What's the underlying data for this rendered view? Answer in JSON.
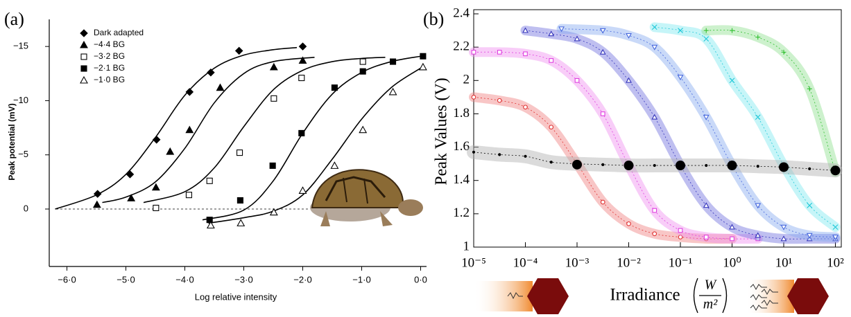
{
  "chart_data": [
    {
      "type": "scatter",
      "panel_label": "(a)",
      "y_label": "Peak potential (mV)",
      "x_label": "Log relative intensity",
      "xlim": [
        -6.3,
        0.1
      ],
      "ylim": [
        5.3,
        -17.5
      ],
      "xticks": [
        {
          "value": -6,
          "label": "−6·0"
        },
        {
          "value": -5,
          "label": "−5·0"
        },
        {
          "value": -4,
          "label": "−4·0"
        },
        {
          "value": -3,
          "label": "−3·0"
        },
        {
          "value": -2,
          "label": "−2·0"
        },
        {
          "value": -1,
          "label": "−1·0"
        },
        {
          "value": 0,
          "label": "0·0"
        }
      ],
      "yticks": [
        {
          "value": -15,
          "label": "−15"
        },
        {
          "value": -10,
          "label": "−10"
        },
        {
          "value": -5,
          "label": "−5"
        },
        0
      ],
      "legend": "upper-left",
      "series": [
        {
          "name": "Dark adapted",
          "marker": "diamond",
          "filled": true,
          "color": "#000000",
          "x": [
            -5.48,
            -4.93,
            -4.48,
            -3.92,
            -3.56,
            -3.08,
            -2.0
          ],
          "values": [
            -1.4,
            -3.2,
            -6.4,
            -10.8,
            -12.6,
            -14.6,
            -15.0
          ],
          "fit": {
            "x": [
              -6.2,
              -5.5,
              -5,
              -4.5,
              -4,
              -3.5,
              -3,
              -2.5,
              -2.1
            ],
            "values": [
              0,
              -1.3,
              -3.2,
              -6.6,
              -10.5,
              -13,
              -14.2,
              -14.7,
              -14.9
            ]
          }
        },
        {
          "name": "−4·4 BG",
          "marker": "triangle-up",
          "filled": true,
          "color": "#000000",
          "x": [
            -5.49,
            -4.91,
            -4.49,
            -4.25,
            -3.92,
            -3.4,
            -2.49,
            -2.0
          ],
          "values": [
            -0.4,
            -1.0,
            -2.0,
            -5.3,
            -7.3,
            -11.2,
            -13.1,
            -13.7
          ],
          "fit": {
            "x": [
              -5.4,
              -5,
              -4.5,
              -4,
              -3.5,
              -3,
              -2.5,
              -1.8
            ],
            "values": [
              -0.6,
              -1.1,
              -2.5,
              -5.6,
              -9.8,
              -12.5,
              -13.6,
              -14.0
            ]
          }
        },
        {
          "name": "−3·2 BG",
          "marker": "square",
          "filled": false,
          "color": "#000000",
          "x": [
            -4.49,
            -3.93,
            -3.58,
            -3.07,
            -2.49,
            -2.02,
            -0.98
          ],
          "values": [
            -0.1,
            -1.3,
            -2.6,
            -5.2,
            -10.2,
            -12.1,
            -13.6
          ],
          "fit": {
            "x": [
              -4.7,
              -4,
              -3.5,
              -3,
              -2.5,
              -2,
              -1.5,
              -1,
              -0.6
            ],
            "values": [
              -0.6,
              -1.6,
              -3.8,
              -7.6,
              -11,
              -12.8,
              -13.6,
              -13.9,
              -14.0
            ]
          }
        },
        {
          "name": "−2·1 BG",
          "marker": "square",
          "filled": true,
          "color": "#000000",
          "x": [
            -3.58,
            -3.06,
            -2.51,
            -2.02,
            -1.46,
            -0.98,
            -0.47,
            0.04
          ],
          "values": [
            1.0,
            -0.8,
            -4.0,
            -7.0,
            -11.2,
            -12.7,
            -13.6,
            -14.1
          ],
          "fit": {
            "x": [
              -3.7,
              -3,
              -2.5,
              -2,
              -1.5,
              -1,
              -0.5,
              0
            ],
            "values": [
              1.0,
              0.1,
              -2.6,
              -7,
              -10.6,
              -12.6,
              -13.6,
              -14.1
            ]
          }
        },
        {
          "name": "−1·0 BG",
          "marker": "triangle-up",
          "filled": false,
          "color": "#000000",
          "x": [
            -3.56,
            -3.05,
            -2.49,
            -2.0,
            -1.46,
            -0.98,
            -0.47,
            0.04
          ],
          "values": [
            1.5,
            1.3,
            0.3,
            -1.7,
            -4.0,
            -7.3,
            -10.8,
            -13.1
          ],
          "fit": {
            "x": [
              -3.6,
              -3,
              -2.5,
              -2,
              -1.5,
              -1,
              -0.5,
              0
            ],
            "values": [
              1.3,
              0.8,
              0.2,
              -1.3,
              -4.6,
              -8.3,
              -11.2,
              -13.0
            ]
          }
        }
      ]
    },
    {
      "type": "line",
      "panel_label": "(b)",
      "xscale": "log",
      "y_label": "Peak Values (V)",
      "x_label": "Irradiance",
      "x_unit_numerator": "W",
      "x_unit_denominator": "m²",
      "xlim": [
        1e-05,
        130
      ],
      "ylim": [
        1,
        2.4
      ],
      "xticks": [
        {
          "value": 1e-05,
          "label": "10⁻⁵"
        },
        {
          "value": 0.0001,
          "label": "10⁻⁴"
        },
        {
          "value": 0.001,
          "label": "10⁻³"
        },
        {
          "value": 0.01,
          "label": "10⁻²"
        },
        {
          "value": 0.1,
          "label": "10⁻¹"
        },
        {
          "value": 1,
          "label": "10⁰"
        },
        {
          "value": 10,
          "label": "10¹"
        },
        {
          "value": 100,
          "label": "10²"
        }
      ],
      "yticks": [
        1,
        1.2,
        1.4,
        1.6,
        1.8,
        2,
        2.2,
        2.4
      ],
      "series": [
        {
          "marker": "circle",
          "color": "#e03030",
          "band_color": "#f08080",
          "x": [
            1e-05,
            3.16e-05,
            0.0001,
            0.000316,
            0.001,
            0.00316,
            0.01,
            0.0316,
            0.1,
            0.316,
            1
          ],
          "values": [
            1.9,
            1.88,
            1.84,
            1.72,
            1.5,
            1.27,
            1.14,
            1.08,
            1.06,
            1.05,
            1.05
          ]
        },
        {
          "marker": "square",
          "color": "#e040e0",
          "band_color": "#f090f0",
          "x": [
            1e-05,
            3.16e-05,
            0.0001,
            0.000316,
            0.001,
            0.00316,
            0.01,
            0.0316,
            0.1,
            0.316,
            1,
            3.16
          ],
          "values": [
            2.17,
            2.17,
            2.16,
            2.12,
            2.0,
            1.8,
            1.49,
            1.22,
            1.1,
            1.06,
            1.05,
            1.05
          ]
        },
        {
          "marker": "triangle-up",
          "color": "#3333bb",
          "band_color": "#7070dd",
          "x": [
            0.0001,
            0.000316,
            0.001,
            0.00316,
            0.01,
            0.0316,
            0.1,
            0.316,
            1,
            3.16,
            10,
            31.6,
            100
          ],
          "values": [
            2.3,
            2.28,
            2.25,
            2.17,
            2.0,
            1.78,
            1.49,
            1.25,
            1.12,
            1.07,
            1.05,
            1.05,
            1.05
          ]
        },
        {
          "marker": "triangle-down",
          "color": "#4466dd",
          "band_color": "#88aaf0",
          "x": [
            0.0005,
            0.00316,
            0.01,
            0.0316,
            0.1,
            0.316,
            1,
            3.16,
            10,
            31.6,
            100
          ],
          "values": [
            2.31,
            2.3,
            2.27,
            2.2,
            2.02,
            1.78,
            1.49,
            1.25,
            1.12,
            1.07,
            1.06
          ]
        },
        {
          "marker": "x",
          "color": "#20c8d8",
          "band_color": "#80e8f0",
          "x": [
            0.0316,
            0.1,
            0.316,
            1,
            3.16,
            10,
            31.6,
            100
          ],
          "values": [
            2.32,
            2.3,
            2.25,
            2.0,
            1.78,
            1.49,
            1.25,
            1.12
          ]
        },
        {
          "marker": "plus",
          "color": "#30c030",
          "band_color": "#90e090",
          "x": [
            0.316,
            1,
            3.16,
            10,
            31.6,
            100
          ],
          "values": [
            2.3,
            2.3,
            2.26,
            2.17,
            1.95,
            1.45
          ]
        },
        {
          "marker": "dot",
          "color": "#000000",
          "band_color": "#b0b0b0",
          "x": [
            1e-05,
            3.16e-05,
            0.0001,
            0.000316,
            0.001,
            0.00316,
            0.01,
            0.0316,
            0.1,
            0.316,
            1,
            3.16,
            10,
            31.6,
            100
          ],
          "values": [
            1.57,
            1.555,
            1.545,
            1.51,
            1.5,
            1.495,
            1.49,
            1.49,
            1.49,
            1.49,
            1.49,
            1.485,
            1.48,
            1.47,
            1.46
          ]
        },
        {
          "marker": "big-dot",
          "color": "#000000",
          "x": [
            0.001,
            0.01,
            0.1,
            1,
            10,
            100
          ],
          "values": [
            1.495,
            1.49,
            1.49,
            1.49,
            1.48,
            1.46
          ]
        }
      ]
    }
  ]
}
